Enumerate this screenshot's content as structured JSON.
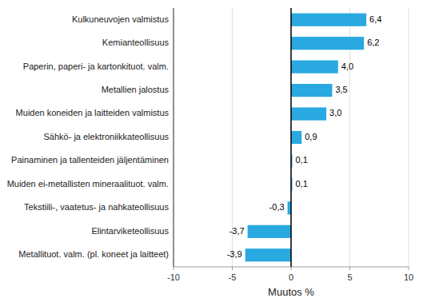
{
  "chart_data": {
    "type": "bar",
    "orientation": "horizontal",
    "categories": [
      "Metallituot. valm. (pl. koneet ja laitteet)",
      "Elintarviketeollisuus",
      "Tekstiili-, vaatetus- ja nahkateollisuus",
      "Muiden ei-metallisten mineraalituot. valm.",
      "Painaminen ja tallenteiden jäljentäminen",
      "Sähkö- ja elektroniikkateollisuus",
      "Muiden koneiden ja laitteiden valmistus",
      "Metallien jalostus",
      "Paperin, paperi- ja kartonkituot. valm.",
      "Kemianteollisuus",
      "Kulkuneuvojen valmistus"
    ],
    "values": [
      -3.9,
      -3.7,
      -0.3,
      0.1,
      0.1,
      0.9,
      3.0,
      3.5,
      4.0,
      6.2,
      6.4
    ],
    "value_labels": [
      "-3,9",
      "-3,7",
      "-0,3",
      "0,1",
      "0,1",
      "0,9",
      "3,0",
      "3,5",
      "4,0",
      "6,2",
      "6,4"
    ],
    "data_labels": true,
    "color": "#29a9e0",
    "xlabel": "Muutos %",
    "xlim": [
      -10,
      10
    ],
    "xticks": [
      -10,
      -5,
      0,
      5,
      10
    ],
    "grid": true
  }
}
